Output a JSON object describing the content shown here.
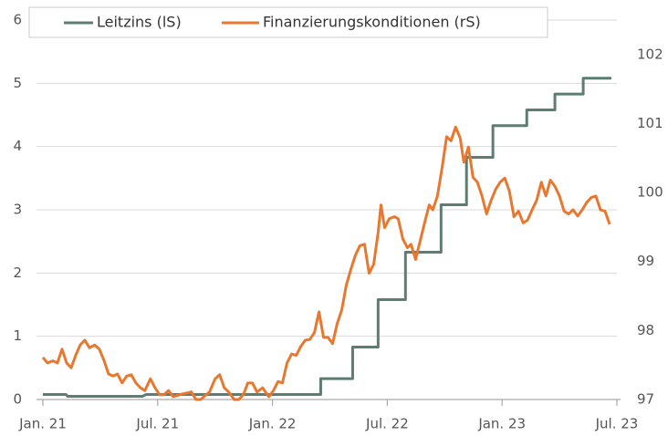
{
  "chart_data": {
    "type": "line",
    "xlim": [
      0,
      30
    ],
    "xticks": [
      {
        "value": 0,
        "label": "Jan. 21"
      },
      {
        "value": 6,
        "label": "Jul. 21"
      },
      {
        "value": 12,
        "label": "Jan. 22"
      },
      {
        "value": 18,
        "label": "Jul. 22"
      },
      {
        "value": 24,
        "label": "Jan. 23"
      },
      {
        "value": 30,
        "label": "Jul. 23"
      }
    ],
    "ylim": [
      0,
      6
    ],
    "yticks": [
      0,
      1,
      2,
      3,
      4,
      5,
      6
    ],
    "y2lim": [
      97,
      102.5
    ],
    "y2ticks": [
      97,
      98,
      99,
      100,
      101,
      102
    ],
    "grid": true,
    "legend": "top",
    "series": [
      {
        "name": "Leitzins (lS)",
        "color": "#5e7d72",
        "axis": "y",
        "x": [
          0,
          1.2,
          1.3,
          5.2,
          5.4,
          14.52,
          14.52,
          16.19,
          16.19,
          17.52,
          17.52,
          18.95,
          18.95,
          20.81,
          20.81,
          22.14,
          22.14,
          23.52,
          23.52,
          25.29,
          25.29,
          26.76,
          26.76,
          28.24,
          28.24,
          29.71
        ],
        "values": [
          0.08,
          0.08,
          0.05,
          0.05,
          0.08,
          0.08,
          0.33,
          0.33,
          0.83,
          0.83,
          1.58,
          1.58,
          2.33,
          2.33,
          3.08,
          3.08,
          3.83,
          3.83,
          4.33,
          4.33,
          4.58,
          4.58,
          4.83,
          4.83,
          5.08,
          5.08
        ]
      },
      {
        "name": "Finanzierungskonditionen (rS)",
        "color": "#e8782f",
        "axis": "y2",
        "x": [
          0,
          0.24,
          0.52,
          0.76,
          1.0,
          1.24,
          1.48,
          1.71,
          1.95,
          2.19,
          2.43,
          2.71,
          2.95,
          3.19,
          3.43,
          3.67,
          3.9,
          4.14,
          4.38,
          4.62,
          4.86,
          5.1,
          5.33,
          5.62,
          5.86,
          6.1,
          6.33,
          6.57,
          6.81,
          7.29,
          7.76,
          8.0,
          8.24,
          8.71,
          9.0,
          9.24,
          9.48,
          9.71,
          10.0,
          10.24,
          10.48,
          10.71,
          10.95,
          11.19,
          11.48,
          11.81,
          12.05,
          12.29,
          12.52,
          12.76,
          13.0,
          13.24,
          13.48,
          13.71,
          13.95,
          14.19,
          14.43,
          14.67,
          14.9,
          15.14,
          15.38,
          15.62,
          15.86,
          16.1,
          16.33,
          16.57,
          16.81,
          17.05,
          17.29,
          17.52,
          17.67,
          17.86,
          18.1,
          18.38,
          18.57,
          18.81,
          19.05,
          19.24,
          19.48,
          19.71,
          19.95,
          20.19,
          20.38,
          20.62,
          20.86,
          21.1,
          21.33,
          21.57,
          21.81,
          22.0,
          22.24,
          22.48,
          22.71,
          22.95,
          23.19,
          23.43,
          23.67,
          23.9,
          24.14,
          24.38,
          24.62,
          24.86,
          25.1,
          25.33,
          25.57,
          25.81,
          26.05,
          26.29,
          26.52,
          26.76,
          27.0,
          27.24,
          27.48,
          27.71,
          27.95,
          28.19,
          28.43,
          28.67,
          28.9,
          29.14,
          29.38,
          29.62
        ],
        "values": [
          97.61,
          97.53,
          97.56,
          97.53,
          97.73,
          97.53,
          97.46,
          97.64,
          97.79,
          97.86,
          97.75,
          97.79,
          97.73,
          97.57,
          97.37,
          97.34,
          97.37,
          97.24,
          97.34,
          97.36,
          97.24,
          97.17,
          97.13,
          97.3,
          97.17,
          97.07,
          97.07,
          97.13,
          97.04,
          97.08,
          97.11,
          97.0,
          97.0,
          97.11,
          97.3,
          97.36,
          97.17,
          97.11,
          97.0,
          97.0,
          97.07,
          97.24,
          97.24,
          97.11,
          97.17,
          97.04,
          97.13,
          97.26,
          97.24,
          97.53,
          97.66,
          97.64,
          97.77,
          97.86,
          97.87,
          97.97,
          98.27,
          97.9,
          97.9,
          97.81,
          98.1,
          98.3,
          98.66,
          98.89,
          99.09,
          99.23,
          99.25,
          98.83,
          98.96,
          99.42,
          99.82,
          99.49,
          99.62,
          99.65,
          99.62,
          99.33,
          99.2,
          99.25,
          99.03,
          99.29,
          99.56,
          99.82,
          99.75,
          99.95,
          100.35,
          100.81,
          100.75,
          100.95,
          100.79,
          100.44,
          100.66,
          100.22,
          100.15,
          99.95,
          99.69,
          99.89,
          100.05,
          100.15,
          100.21,
          100.02,
          99.65,
          99.73,
          99.56,
          99.6,
          99.75,
          99.89,
          100.15,
          99.95,
          100.18,
          100.09,
          99.95,
          99.73,
          99.69,
          99.75,
          99.66,
          99.75,
          99.86,
          99.93,
          99.95,
          99.75,
          99.73,
          99.54
        ]
      }
    ]
  }
}
